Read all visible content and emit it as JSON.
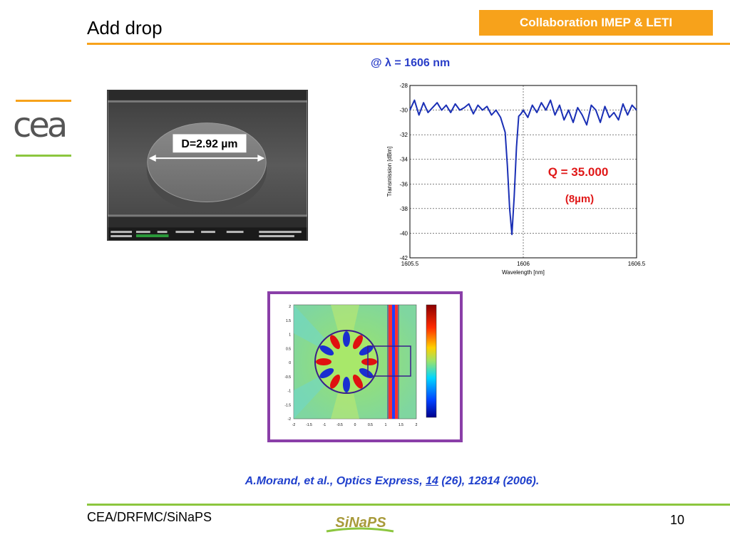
{
  "header": {
    "title": "Add drop",
    "badge": "Collaboration IMEP & LETI"
  },
  "logo": {
    "text": "cea",
    "accent_top": "#f7a21b",
    "accent_bottom": "#8cc63f"
  },
  "sem_figure": {
    "measure_label": "D=2.92 µm"
  },
  "annotation": {
    "lambda_label": "@ λ = 1606 nm",
    "q_label": "Q = 35.000",
    "size_label": "(8µm)"
  },
  "chart_data": {
    "type": "line",
    "xlabel": "Wavelength [nm]",
    "ylabel": "Transmission [dBm]",
    "xlim": [
      1605.5,
      1606.5
    ],
    "ylim": [
      -42,
      -28
    ],
    "x_ticks": [
      "1605.5",
      "1606",
      "1606.5"
    ],
    "y_ticks": [
      "-28",
      "-30",
      "-32",
      "-34",
      "-36",
      "-38",
      "-40",
      "-42"
    ],
    "grid": true,
    "series": [
      {
        "color": "#1a2fb5",
        "x": [
          1605.5,
          1605.52,
          1605.54,
          1605.56,
          1605.58,
          1605.6,
          1605.62,
          1605.64,
          1605.66,
          1605.68,
          1605.7,
          1605.72,
          1605.74,
          1605.76,
          1605.78,
          1605.8,
          1605.82,
          1605.84,
          1605.86,
          1605.88,
          1605.9,
          1605.92,
          1605.93,
          1605.94,
          1605.95,
          1605.96,
          1605.97,
          1605.98,
          1605.99,
          1606.0,
          1606.02,
          1606.04,
          1606.06,
          1606.08,
          1606.1,
          1606.12,
          1606.14,
          1606.16,
          1606.18,
          1606.2,
          1606.22,
          1606.24,
          1606.26,
          1606.28,
          1606.3,
          1606.32,
          1606.34,
          1606.36,
          1606.38,
          1606.4,
          1606.42,
          1606.44,
          1606.46,
          1606.48,
          1606.5
        ],
        "y": [
          -30.0,
          -29.2,
          -30.4,
          -29.4,
          -30.2,
          -29.8,
          -29.4,
          -30.0,
          -29.6,
          -30.2,
          -29.5,
          -30.0,
          -29.8,
          -29.5,
          -30.3,
          -29.6,
          -30.0,
          -29.7,
          -30.4,
          -30.0,
          -30.6,
          -31.8,
          -34.5,
          -38.0,
          -40.1,
          -37.0,
          -33.0,
          -30.5,
          -30.3,
          -30.0,
          -30.6,
          -29.6,
          -30.2,
          -29.4,
          -30.0,
          -29.2,
          -30.4,
          -29.6,
          -30.8,
          -30.0,
          -31.0,
          -29.8,
          -30.4,
          -31.2,
          -29.6,
          -30.0,
          -31.0,
          -29.7,
          -30.6,
          -30.2,
          -30.8,
          -29.5,
          -30.4,
          -29.6,
          -30.0
        ]
      }
    ]
  },
  "sim_figure": {
    "x_ticks": [
      "-2",
      "-1.5",
      "-1",
      "-0.5",
      "0",
      "0.5",
      "1",
      "1.5",
      "2"
    ],
    "y_ticks": [
      "2",
      "1.5",
      "1",
      "0.5",
      "0",
      "-0.5",
      "-1",
      "-1.5",
      "-2"
    ]
  },
  "citation": {
    "prefix": "A.Morand, et al., Optics Express, ",
    "volume": "14",
    "suffix": " (26), 12814 (2006)."
  },
  "footer": {
    "left": "CEA/DRFMC/SiNaPS",
    "logo_text": "SiNaPS",
    "page_number": "10"
  }
}
